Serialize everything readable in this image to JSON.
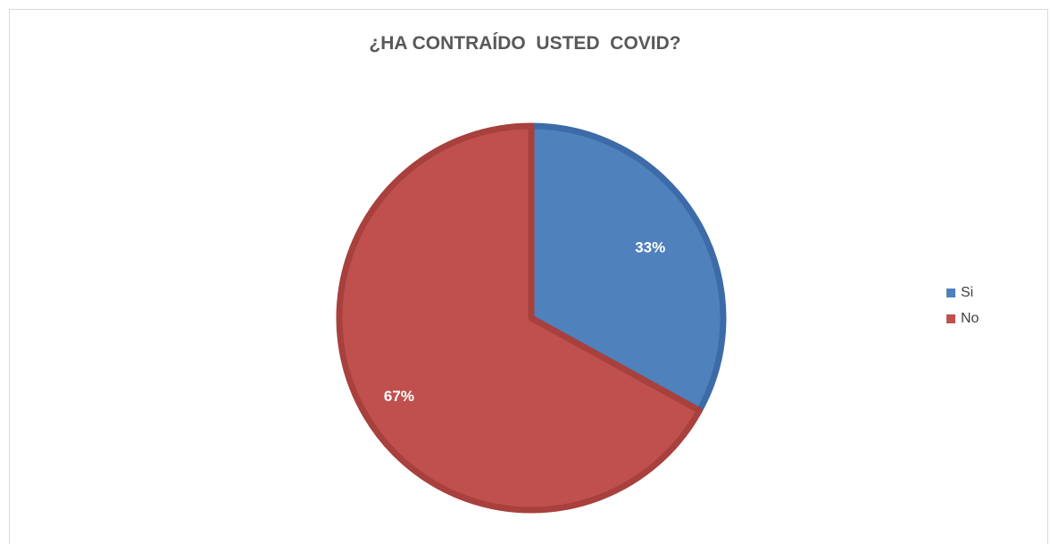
{
  "chart_data": {
    "type": "pie",
    "title": "¿HA CONTRAÍDO  USTED  COVID?",
    "categories": [
      "Si",
      "No"
    ],
    "values": [
      33,
      67
    ],
    "labels": [
      "33%",
      "67%"
    ],
    "colors": [
      "#4f81bd",
      "#c0504d"
    ],
    "edge_colors": [
      "#3c6ba8",
      "#a8403d"
    ],
    "legend_position": "right"
  }
}
